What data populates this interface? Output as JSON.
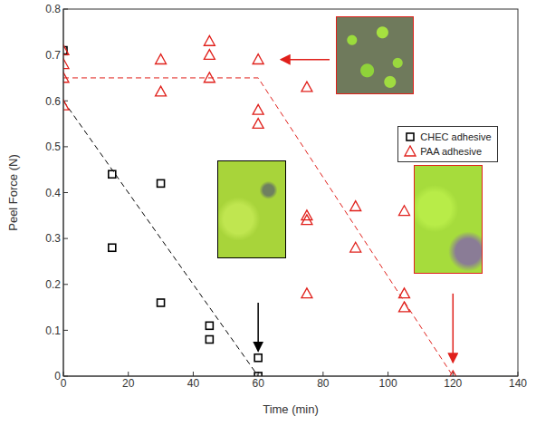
{
  "chart_data": {
    "type": "scatter",
    "x_label": "Time (min)",
    "y_label": "Peel Force (N)",
    "xlim": [
      0,
      140
    ],
    "xticks": [
      0,
      20,
      40,
      60,
      80,
      100,
      120,
      140
    ],
    "ylim": [
      0,
      0.8
    ],
    "yticks": [
      0,
      0.1,
      0.2,
      0.3,
      0.4,
      0.5,
      0.6,
      0.7,
      0.8
    ],
    "legend": "upper right",
    "series": [
      {
        "name": "CHEC adhesive",
        "color": "#000000",
        "marker": "square",
        "x": [
          0,
          15,
          15,
          30,
          30,
          45,
          45,
          60,
          60
        ],
        "values": [
          0.71,
          0.44,
          0.28,
          0.42,
          0.16,
          0.11,
          0.08,
          0.04,
          0.0
        ]
      },
      {
        "name": "PAA adhesive",
        "color": "#e0201b",
        "marker": "triangle",
        "x": [
          0,
          0,
          0,
          0,
          30,
          30,
          45,
          45,
          45,
          60,
          60,
          60,
          75,
          75,
          75,
          75,
          90,
          90,
          105,
          105,
          105,
          120
        ],
        "values": [
          0.71,
          0.68,
          0.65,
          0.59,
          0.69,
          0.62,
          0.73,
          0.7,
          0.65,
          0.69,
          0.58,
          0.55,
          0.63,
          0.35,
          0.34,
          0.18,
          0.37,
          0.28,
          0.36,
          0.18,
          0.15,
          0.0
        ]
      }
    ],
    "trend_lines": [
      {
        "color": "#000000",
        "line_style": "dashed",
        "x": [
          0,
          60
        ],
        "values": [
          0.6,
          0.0
        ]
      },
      {
        "color": "#e0201b",
        "line_style": "dashed",
        "x": [
          0,
          60,
          120
        ],
        "values": [
          0.65,
          0.65,
          0.0
        ]
      }
    ]
  }
}
